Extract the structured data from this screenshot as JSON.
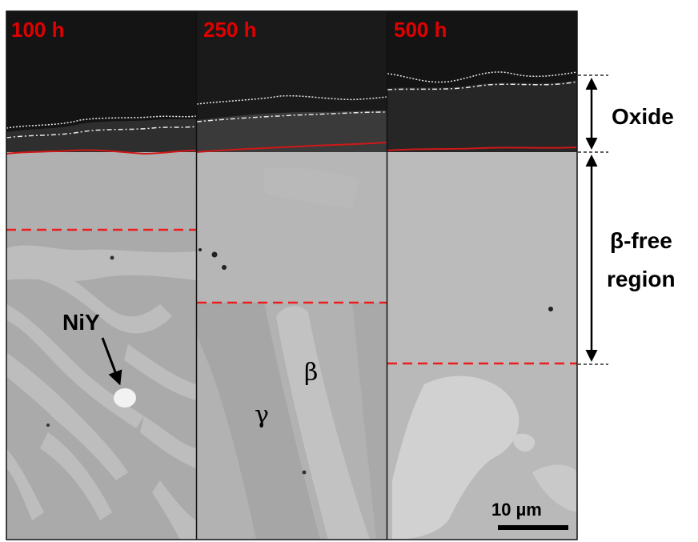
{
  "figure": {
    "panels": [
      {
        "label": "100 h"
      },
      {
        "label": "250 h"
      },
      {
        "label": "500 h"
      }
    ],
    "label_color": "#e00000",
    "interface_color": "#d01818",
    "region_boundary_color": "#ee1c1c",
    "annotations": {
      "niy": "NiY",
      "beta": "β",
      "gamma": "γ"
    },
    "side_labels": {
      "oxide": "Oxide",
      "beta_free_line1": "β-free",
      "beta_free_line2": "region"
    },
    "scale_bar": {
      "label": "10 µm"
    }
  }
}
